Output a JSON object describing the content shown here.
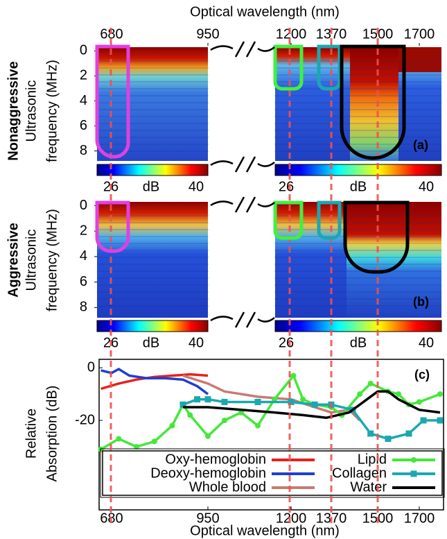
{
  "chart_data": [
    {
      "type": "heatmap",
      "xlabel": "Optical wavelength (nm)",
      "xticks": [
        680,
        950,
        1200,
        1370,
        1500,
        1700
      ],
      "ylabel": [
        "Ultrasonic",
        "frequency (MHz)"
      ],
      "group_label": "Nonaggressive",
      "panel_label": "(a)",
      "ylim": [
        -0.3,
        8.8
      ],
      "yticks": [
        0,
        2,
        4,
        6,
        8
      ],
      "colorbar": {
        "ticks": [
          26,
          40
        ],
        "label": "dB"
      }
    },
    {
      "type": "heatmap",
      "ylabel": [
        "Ultrasonic",
        "frequency (MHz)"
      ],
      "group_label": "Aggressive",
      "panel_label": "(b)",
      "ylim": [
        -0.3,
        8.8
      ],
      "yticks": [
        0,
        2,
        4,
        6,
        8
      ],
      "colorbar": {
        "ticks": [
          26,
          40
        ],
        "label": "dB"
      }
    },
    {
      "type": "line",
      "xlabel": "Optical wavelength (nm)",
      "ylabel": [
        "Relative",
        "Absorption (dB)"
      ],
      "panel_label": "(c)",
      "xlim": [
        650,
        1800
      ],
      "xticks": [
        680,
        950,
        1200,
        1370,
        1500,
        1700
      ],
      "ylim": [
        -54,
        3.2
      ],
      "yticks": [
        0,
        -20
      ],
      "series": [
        {
          "name": "Oxy-hemoglobin",
          "color": "#e8201c",
          "marker": "none",
          "x": [
            650,
            700,
            750,
            800,
            850,
            900,
            950
          ],
          "values": [
            -8,
            -6,
            -4.5,
            -3.5,
            -3,
            -2.5,
            -3
          ]
        },
        {
          "name": "Deoxy-hemoglobin",
          "color": "#1f3fd0",
          "marker": "none",
          "x": [
            650,
            680,
            700,
            730,
            780,
            830,
            880,
            920,
            950
          ],
          "values": [
            -1,
            -2,
            -0.5,
            -3,
            -4,
            -4,
            -4.5,
            -7,
            -10
          ]
        },
        {
          "name": "Whole blood",
          "color": "#c87a72",
          "marker": "none",
          "x": [
            880,
            950,
            1000,
            1100,
            1200,
            1300,
            1370,
            1420,
            1450
          ],
          "values": [
            -3,
            -6,
            -9,
            -11,
            -12,
            -15,
            -17,
            -16,
            -20
          ]
        },
        {
          "name": "Lipid",
          "color": "#44e838",
          "marker": "circle",
          "x": [
            650,
            700,
            750,
            800,
            850,
            880,
            900,
            950,
            1000,
            1050,
            1100,
            1150,
            1210,
            1250,
            1300,
            1370,
            1400,
            1450,
            1480,
            1550,
            1600,
            1650,
            1700,
            1800
          ],
          "values": [
            -31,
            -27,
            -30,
            -28,
            -22,
            -14,
            -18,
            -26,
            -20,
            -17,
            -22,
            -12,
            -3,
            -12,
            -14,
            -15,
            -18,
            -10,
            -6,
            -9,
            -10,
            -14,
            -13,
            -10
          ]
        },
        {
          "name": "Collagen",
          "color": "#1aa8b0",
          "marker": "square",
          "x": [
            880,
            920,
            950,
            1000,
            1100,
            1200,
            1300,
            1370,
            1430,
            1480,
            1550,
            1650,
            1720,
            1800
          ],
          "values": [
            -14,
            -12,
            -12,
            -13,
            -13,
            -13,
            -14,
            -14,
            -16,
            -25,
            -27,
            -25,
            -20,
            -20
          ]
        },
        {
          "name": "Water",
          "color": "#000000",
          "marker": "none",
          "x": [
            880,
            950,
            1050,
            1150,
            1250,
            1350,
            1420,
            1470,
            1500,
            1550,
            1600,
            1700,
            1800
          ],
          "values": [
            -15,
            -15,
            -16,
            -17,
            -18,
            -19,
            -17,
            -12,
            -9,
            -9,
            -12,
            -16,
            -17
          ]
        }
      ]
    }
  ]
}
